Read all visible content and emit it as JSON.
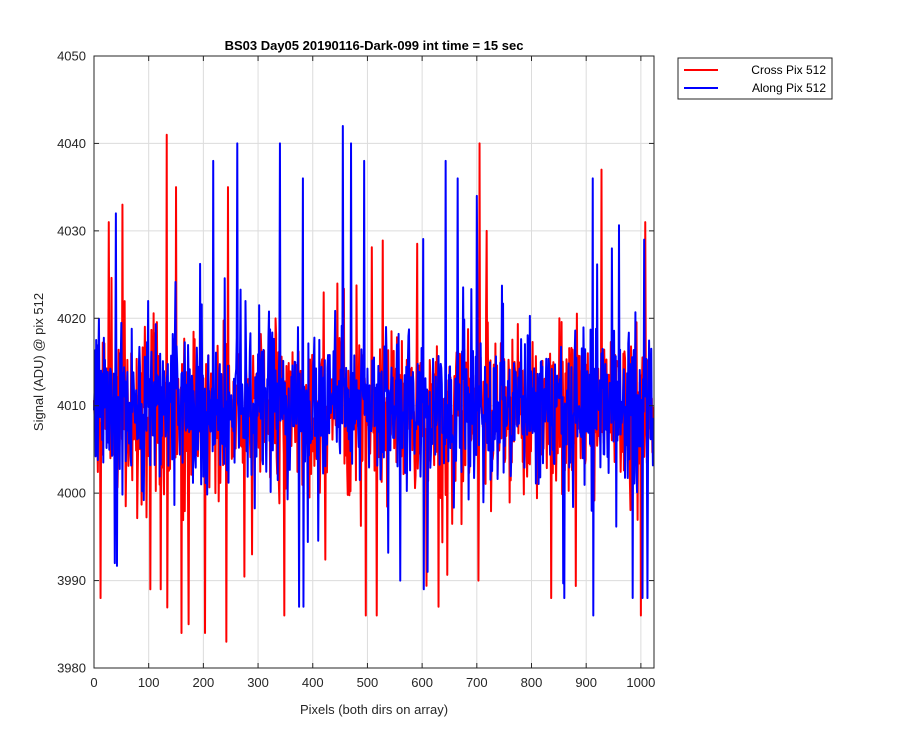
{
  "chart_data": {
    "type": "line",
    "title": "BS03 Day05 20190116-Dark-099 int time = 15 sec",
    "xlabel": "Pixels (both dirs on array)",
    "ylabel": "Signal (ADU) @ pix 512",
    "xlim": [
      0,
      1024
    ],
    "ylim": [
      3980,
      4050
    ],
    "xticks": [
      0,
      100,
      200,
      300,
      400,
      500,
      600,
      700,
      800,
      900,
      1000
    ],
    "yticks": [
      3980,
      3990,
      4000,
      4010,
      4020,
      4030,
      4040,
      4050
    ],
    "grid": true,
    "legend_position": "outside top-right",
    "series": [
      {
        "name": "Cross Pix 512",
        "color": "#ff0000",
        "summary": {
          "mean": 4009.5,
          "min": 3983,
          "max": 4041
        },
        "peaks": [
          [
            27,
            4031
          ],
          [
            52,
            4033
          ],
          [
            133,
            4041
          ],
          [
            150,
            4035
          ],
          [
            245,
            4035
          ],
          [
            705,
            4040
          ],
          [
            718,
            4030
          ],
          [
            928,
            4037
          ],
          [
            1008,
            4031
          ]
        ],
        "dips": [
          [
            12,
            3988
          ],
          [
            103,
            3989
          ],
          [
            122,
            3989
          ],
          [
            160,
            3984
          ],
          [
            173,
            3985
          ],
          [
            203,
            3984
          ],
          [
            242,
            3983
          ],
          [
            289,
            3993
          ],
          [
            497,
            3986
          ],
          [
            517,
            3986
          ],
          [
            630,
            3987
          ],
          [
            703,
            3990
          ],
          [
            836,
            3988
          ],
          [
            1000,
            3986
          ]
        ]
      },
      {
        "name": "Along Pix 512",
        "color": "#0000ff",
        "summary": {
          "mean": 4010,
          "min": 3986,
          "max": 4042
        },
        "peaks": [
          [
            40,
            4032
          ],
          [
            218,
            4038
          ],
          [
            262,
            4040
          ],
          [
            340,
            4040
          ],
          [
            382,
            4036
          ],
          [
            455,
            4042
          ],
          [
            470,
            4040
          ],
          [
            494,
            4038
          ],
          [
            643,
            4038
          ],
          [
            665,
            4036
          ],
          [
            700,
            4034
          ],
          [
            912,
            4036
          ],
          [
            1006,
            4029
          ]
        ],
        "dips": [
          [
            38,
            3992
          ],
          [
            375,
            3987
          ],
          [
            383,
            3987
          ],
          [
            560,
            3990
          ],
          [
            610,
            3991
          ],
          [
            860,
            3988
          ],
          [
            913,
            3986
          ],
          [
            985,
            3988
          ],
          [
            1003,
            3988
          ],
          [
            1012,
            3988
          ]
        ]
      }
    ]
  }
}
